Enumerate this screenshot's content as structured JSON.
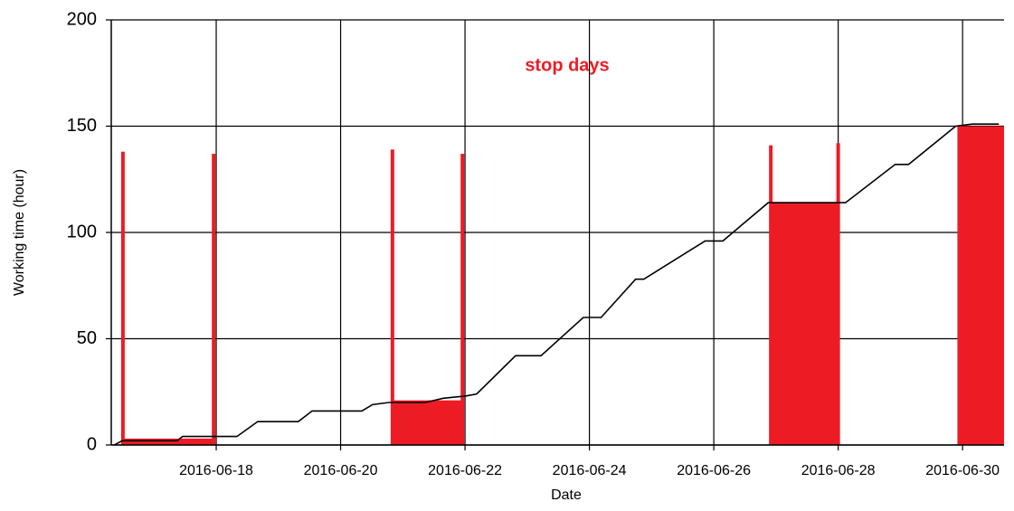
{
  "chart_data": {
    "type": "line",
    "annotation": "stop days",
    "xlabel": "Date",
    "ylabel": "Working time (hour)",
    "xlim": [
      "2016-06-16T07:30",
      "2016-06-30T16:00"
    ],
    "xticks": [
      "2016-06-18",
      "2016-06-20",
      "2016-06-22",
      "2016-06-24",
      "2016-06-26",
      "2016-06-28",
      "2016-06-30"
    ],
    "ylim": [
      0,
      200
    ],
    "yticks": [
      0,
      50,
      100,
      150,
      200
    ],
    "grid": true,
    "series": [
      {
        "color": "#000000",
        "x": [
          "2016-06-16T08:40",
          "2016-06-16T11:45",
          "2016-06-17T09:00",
          "2016-06-17T11:00",
          "2016-06-18T08:00",
          "2016-06-18T16:00",
          "2016-06-19T07:40",
          "2016-06-19T13:00",
          "2016-06-20T08:10",
          "2016-06-20T12:20",
          "2016-06-20T18:40",
          "2016-06-21T08:40",
          "2016-06-21T15:40",
          "2016-06-22T00:10",
          "2016-06-22T04:30",
          "2016-06-22T19:30",
          "2016-06-23T05:20",
          "2016-06-23T21:40",
          "2016-06-24T04:30",
          "2016-06-24T17:50",
          "2016-06-24T21:00",
          "2016-06-25T20:40",
          "2016-06-26T03:30",
          "2016-06-26T21:00",
          "2016-06-28T02:50",
          "2016-06-28T22:00",
          "2016-06-29T03:10",
          "2016-06-29T21:20",
          "2016-06-30T03:40",
          "2016-06-30T14:00"
        ],
        "values": [
          0,
          2,
          2,
          4,
          4,
          11,
          11,
          16,
          16,
          19,
          20,
          20,
          22,
          23,
          24,
          42,
          42,
          60,
          60,
          78,
          78,
          96,
          96,
          114,
          114,
          132,
          132,
          150,
          151,
          151
        ]
      }
    ],
    "stops": {
      "color": "#ed1c24",
      "periods": [
        {
          "start": "2016-06-16T12:00",
          "end": "2016-06-17T23:00",
          "value": 3
        },
        {
          "start": "2016-06-20T20:00",
          "end": "2016-06-21T23:00",
          "value": 21
        },
        {
          "start": "2016-06-26T22:00",
          "end": "2016-06-28T00:00",
          "value": 114
        },
        {
          "start": "2016-06-29T22:00",
          "end": "2016-06-30T16:00",
          "value": 150
        }
      ],
      "spikes": {
        "x": [
          "2016-06-16T12:00",
          "2016-06-17T23:00",
          "2016-06-20T20:00",
          "2016-06-21T23:00",
          "2016-06-26T22:00",
          "2016-06-28T00:00"
        ],
        "values": [
          138,
          137,
          139,
          137,
          141,
          142
        ]
      }
    }
  }
}
